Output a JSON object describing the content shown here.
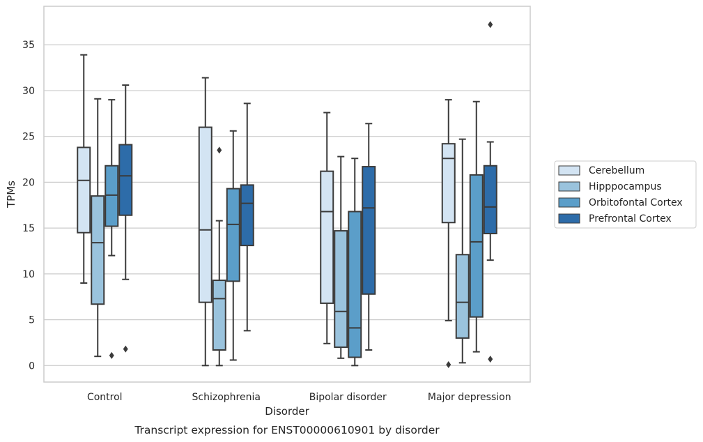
{
  "caption": "Transcript expression for ENST00000610901 by disorder",
  "chart_data": {
    "type": "box",
    "xlabel": "Disorder",
    "ylabel": "TPMs",
    "ylim": [
      -1.8,
      39.2
    ],
    "yticks": [
      0,
      5,
      10,
      15,
      20,
      25,
      30,
      35
    ],
    "grid": "horizontal",
    "legend_placement": "center-right outside",
    "categories": [
      "Control",
      "Schizophrenia",
      "Bipolar disorder",
      "Major depression"
    ],
    "series": [
      {
        "name": "Cerebellum",
        "color": "#d3e4f3",
        "boxes": [
          {
            "whisker_low": 9.0,
            "q1": 14.5,
            "median": 20.2,
            "q3": 23.8,
            "whisker_high": 33.9,
            "outliers": []
          },
          {
            "whisker_low": 0.0,
            "q1": 6.9,
            "median": 14.8,
            "q3": 26.0,
            "whisker_high": 31.4,
            "outliers": []
          },
          {
            "whisker_low": 2.4,
            "q1": 6.8,
            "median": 16.8,
            "q3": 21.2,
            "whisker_high": 27.6,
            "outliers": []
          },
          {
            "whisker_low": 4.9,
            "q1": 15.6,
            "median": 22.6,
            "q3": 24.2,
            "whisker_high": 29.0,
            "outliers": [
              0.1
            ]
          }
        ]
      },
      {
        "name": "Hipppocampus",
        "color": "#9ac3dd",
        "boxes": [
          {
            "whisker_low": 1.0,
            "q1": 6.7,
            "median": 13.4,
            "q3": 18.5,
            "whisker_high": 29.1,
            "outliers": []
          },
          {
            "whisker_low": 0.0,
            "q1": 1.7,
            "median": 7.3,
            "q3": 9.3,
            "whisker_high": 15.8,
            "outliers": [
              23.5
            ]
          },
          {
            "whisker_low": 0.8,
            "q1": 2.0,
            "median": 5.9,
            "q3": 14.7,
            "whisker_high": 22.8,
            "outliers": []
          },
          {
            "whisker_low": 0.3,
            "q1": 3.0,
            "median": 6.9,
            "q3": 12.1,
            "whisker_high": 24.7,
            "outliers": []
          }
        ]
      },
      {
        "name": "Orbitofontal Cortex",
        "color": "#5b9ec9",
        "boxes": [
          {
            "whisker_low": 12.0,
            "q1": 15.2,
            "median": 18.6,
            "q3": 21.8,
            "whisker_high": 29.0,
            "outliers": [
              1.1
            ]
          },
          {
            "whisker_low": 0.6,
            "q1": 9.2,
            "median": 15.4,
            "q3": 19.3,
            "whisker_high": 25.6,
            "outliers": []
          },
          {
            "whisker_low": 0.0,
            "q1": 0.9,
            "median": 4.1,
            "q3": 16.8,
            "whisker_high": 22.6,
            "outliers": []
          },
          {
            "whisker_low": 1.5,
            "q1": 5.3,
            "median": 13.5,
            "q3": 20.8,
            "whisker_high": 28.8,
            "outliers": []
          }
        ]
      },
      {
        "name": "Prefrontal Cortex",
        "color": "#2d6ca9",
        "boxes": [
          {
            "whisker_low": 9.4,
            "q1": 16.4,
            "median": 20.7,
            "q3": 24.1,
            "whisker_high": 30.6,
            "outliers": [
              1.8
            ]
          },
          {
            "whisker_low": 3.8,
            "q1": 13.1,
            "median": 17.7,
            "q3": 19.7,
            "whisker_high": 28.6,
            "outliers": []
          },
          {
            "whisker_low": 1.7,
            "q1": 7.8,
            "median": 17.2,
            "q3": 21.7,
            "whisker_high": 26.4,
            "outliers": []
          },
          {
            "whisker_low": 11.5,
            "q1": 14.4,
            "median": 17.3,
            "q3": 21.8,
            "whisker_high": 24.4,
            "outliers": [
              0.7,
              37.2
            ]
          }
        ]
      }
    ]
  }
}
